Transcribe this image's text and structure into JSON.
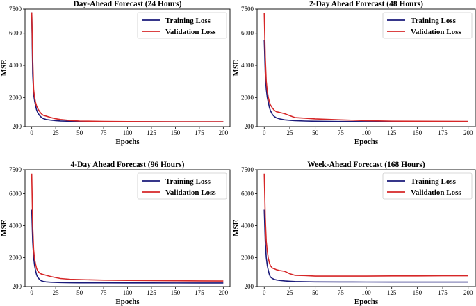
{
  "chart_data": [
    {
      "type": "line",
      "title": "Day-Ahead Forecast (24 Hours)",
      "xlabel": "Epochs",
      "ylabel": "MSE",
      "xlim": [
        -7,
        207
      ],
      "ylim": [
        200,
        7500
      ],
      "xticks": [
        0,
        25,
        50,
        75,
        100,
        125,
        150,
        175,
        200
      ],
      "yticks": [
        200,
        2000,
        4000,
        6000,
        7500
      ],
      "legend": "top-right",
      "series": [
        {
          "name": "Training Loss",
          "color": "#1a1a7a",
          "x": [
            0,
            1,
            2,
            3,
            4,
            5,
            6,
            8,
            10,
            12,
            15,
            20,
            25,
            30,
            40,
            50,
            75,
            100,
            125,
            150,
            175,
            200
          ],
          "y": [
            7300,
            3500,
            2200,
            1800,
            1500,
            1250,
            1100,
            900,
            780,
            700,
            640,
            600,
            570,
            550,
            530,
            515,
            505,
            500,
            498,
            497,
            496,
            495
          ]
        },
        {
          "name": "Validation Loss",
          "color": "#d62728",
          "x": [
            0,
            1,
            2,
            3,
            4,
            5,
            6,
            8,
            10,
            12,
            15,
            20,
            25,
            30,
            40,
            50,
            75,
            100,
            125,
            150,
            175,
            200
          ],
          "y": [
            7300,
            4500,
            2500,
            2000,
            1700,
            1500,
            1350,
            1150,
            1000,
            900,
            850,
            760,
            690,
            640,
            580,
            545,
            520,
            510,
            505,
            502,
            500,
            498
          ]
        }
      ]
    },
    {
      "type": "line",
      "title": "2-Day Ahead Forecast (48 Hours)",
      "xlabel": "Epochs",
      "ylabel": "MSE",
      "xlim": [
        -7,
        207
      ],
      "ylim": [
        200,
        7500
      ],
      "xticks": [
        0,
        25,
        50,
        75,
        100,
        125,
        150,
        175,
        200
      ],
      "yticks": [
        200,
        2000,
        4000,
        6000,
        7500
      ],
      "legend": "top-right",
      "series": [
        {
          "name": "Training Loss",
          "color": "#1a1a7a",
          "x": [
            0,
            1,
            2,
            3,
            4,
            5,
            6,
            8,
            10,
            12,
            15,
            20,
            25,
            30,
            40,
            50,
            75,
            100,
            125,
            150,
            175,
            200
          ],
          "y": [
            5600,
            3500,
            2500,
            2000,
            1700,
            1400,
            1200,
            950,
            820,
            740,
            680,
            620,
            590,
            570,
            545,
            530,
            515,
            508,
            503,
            500,
            498,
            496
          ]
        },
        {
          "name": "Validation Loss",
          "color": "#d62728",
          "x": [
            0,
            1,
            2,
            3,
            4,
            5,
            6,
            8,
            10,
            12,
            15,
            20,
            25,
            30,
            40,
            50,
            75,
            100,
            125,
            150,
            175,
            200
          ],
          "y": [
            7250,
            4500,
            3000,
            2400,
            2000,
            1750,
            1550,
            1350,
            1200,
            1120,
            1080,
            1000,
            880,
            760,
            720,
            680,
            620,
            570,
            540,
            530,
            525,
            520
          ]
        }
      ]
    },
    {
      "type": "line",
      "title": "4-Day Ahead Forecast (96 Hours)",
      "xlabel": "Epochs",
      "ylabel": "MSE",
      "xlim": [
        -7,
        207
      ],
      "ylim": [
        200,
        7500
      ],
      "xticks": [
        0,
        25,
        50,
        75,
        100,
        125,
        150,
        175,
        200
      ],
      "yticks": [
        200,
        2000,
        4000,
        6000,
        7500
      ],
      "legend": "top-right",
      "series": [
        {
          "name": "Training Loss",
          "color": "#1a1a7a",
          "x": [
            0,
            1,
            2,
            3,
            4,
            5,
            6,
            8,
            10,
            12,
            15,
            20,
            25,
            30,
            40,
            50,
            75,
            100,
            125,
            150,
            175,
            200
          ],
          "y": [
            5000,
            3000,
            2000,
            1500,
            1200,
            950,
            800,
            650,
            560,
            520,
            490,
            470,
            455,
            445,
            435,
            430,
            428,
            425,
            424,
            423,
            422,
            421
          ]
        },
        {
          "name": "Validation Loss",
          "color": "#d62728",
          "x": [
            0,
            1,
            2,
            3,
            4,
            5,
            6,
            8,
            10,
            12,
            15,
            20,
            25,
            30,
            40,
            50,
            75,
            100,
            125,
            150,
            175,
            200
          ],
          "y": [
            7250,
            4000,
            2500,
            1900,
            1600,
            1350,
            1200,
            1050,
            980,
            950,
            900,
            820,
            760,
            700,
            650,
            630,
            600,
            580,
            570,
            560,
            550,
            545
          ]
        }
      ]
    },
    {
      "type": "line",
      "title": "Week-Ahead Forecast (168 Hours)",
      "xlabel": "Epochs",
      "ylabel": "MSE",
      "xlim": [
        -7,
        207
      ],
      "ylim": [
        200,
        7500
      ],
      "xticks": [
        0,
        25,
        50,
        75,
        100,
        125,
        150,
        175,
        200
      ],
      "yticks": [
        200,
        2000,
        4000,
        6000,
        7500
      ],
      "legend": "top-right",
      "series": [
        {
          "name": "Training Loss",
          "color": "#1a1a7a",
          "x": [
            0,
            1,
            2,
            3,
            4,
            5,
            6,
            8,
            10,
            12,
            15,
            20,
            25,
            30,
            40,
            50,
            75,
            100,
            125,
            150,
            175,
            200
          ],
          "y": [
            5000,
            3000,
            2000,
            1500,
            1200,
            950,
            800,
            700,
            640,
            610,
            580,
            550,
            530,
            515,
            500,
            490,
            485,
            482,
            480,
            480,
            480,
            480
          ]
        },
        {
          "name": "Validation Loss",
          "color": "#d62728",
          "x": [
            0,
            1,
            2,
            3,
            4,
            5,
            6,
            8,
            10,
            12,
            15,
            20,
            25,
            30,
            40,
            50,
            75,
            100,
            125,
            150,
            175,
            200
          ],
          "y": [
            7250,
            4500,
            3000,
            2400,
            1950,
            1700,
            1500,
            1350,
            1300,
            1250,
            1200,
            1150,
            1000,
            900,
            880,
            850,
            850,
            850,
            860,
            860,
            870,
            870
          ]
        }
      ]
    }
  ]
}
